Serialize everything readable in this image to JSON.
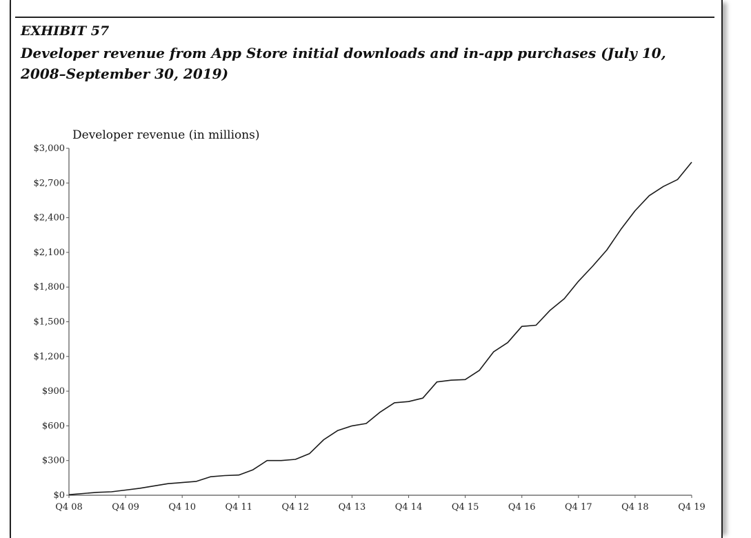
{
  "header": {
    "exhibit": "EXHIBIT 57",
    "title": "Developer revenue from App Store initial downloads and in-app purchases (July 10, 2008–September 30, 2019)"
  },
  "chart_data": {
    "type": "line",
    "title": "Developer revenue from App Store initial downloads and in-app purchases (July 10, 2008–September 30, 2019)",
    "xlabel": "",
    "ylabel": "Developer revenue (in millions)",
    "ylim": [
      0,
      3000
    ],
    "yticks": [
      0,
      300,
      600,
      900,
      1200,
      1500,
      1800,
      2100,
      2400,
      2700,
      3000
    ],
    "ytick_labels": [
      "$0",
      "$300",
      "$600",
      "$900",
      "$1,200",
      "$1,500",
      "$1,800",
      "$2,100",
      "$2,400",
      "$2,700",
      "$3,000"
    ],
    "xtick_labels": [
      "Q4 08",
      "Q4 09",
      "Q4 10",
      "Q4 11",
      "Q4 12",
      "Q4 13",
      "Q4 14",
      "Q4 15",
      "Q4 16",
      "Q4 17",
      "Q4 18",
      "Q4 19"
    ],
    "grid": false,
    "color": "#1a1a1a",
    "series": [
      {
        "values": [
          5,
          15,
          25,
          30,
          45,
          60,
          80,
          100,
          110,
          120,
          160,
          170,
          175,
          220,
          300,
          300,
          310,
          360,
          480,
          560,
          600,
          620,
          720,
          800,
          810,
          840,
          980,
          995,
          1000,
          1080,
          1240,
          1320,
          1460,
          1470,
          1600,
          1700,
          1850,
          1980,
          2120,
          2300,
          2460,
          2590,
          2670,
          2730,
          2880
        ]
      }
    ]
  }
}
